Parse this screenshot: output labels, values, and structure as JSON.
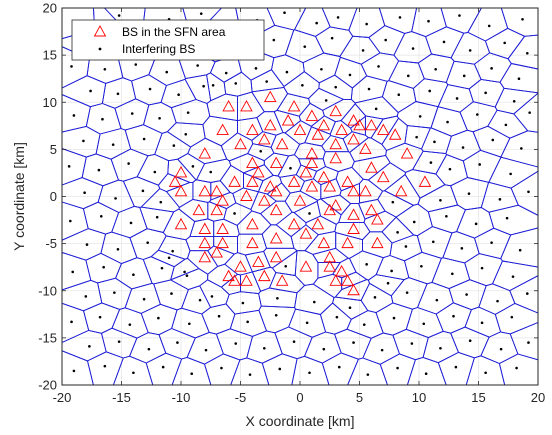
{
  "chart_data": {
    "type": "scatter",
    "xlabel": "X coordinate [km]",
    "ylabel": "Y coordinate [km]",
    "xlim": [
      -20,
      20
    ],
    "ylim": [
      -20,
      20
    ],
    "xticks": [
      -20,
      -15,
      -10,
      -5,
      0,
      5,
      10,
      15,
      20
    ],
    "yticks": [
      -20,
      -15,
      -10,
      -5,
      0,
      5,
      10,
      15,
      20
    ],
    "grid": true,
    "legend_position": "top-left",
    "overlay": "Voronoi cell boundaries of all base stations",
    "series": [
      {
        "name": "BS in the SFN area",
        "marker": "triangle",
        "color": "#ff0000",
        "points": [
          [
            -6,
            9.5
          ],
          [
            -4.5,
            9.5
          ],
          [
            -2.5,
            10.5
          ],
          [
            -0.5,
            9.5
          ],
          [
            1,
            8.5
          ],
          [
            3,
            9
          ],
          [
            4.5,
            8
          ],
          [
            -6.5,
            7
          ],
          [
            -4,
            7
          ],
          [
            -2.5,
            7.5
          ],
          [
            -1,
            8
          ],
          [
            0,
            7
          ],
          [
            2,
            7.5
          ],
          [
            3.5,
            7
          ],
          [
            5,
            7.5
          ],
          [
            6,
            7.5
          ],
          [
            7,
            7
          ],
          [
            8,
            6.5
          ],
          [
            -8,
            4.5
          ],
          [
            -5,
            5.5
          ],
          [
            -3,
            6
          ],
          [
            -1.5,
            5.5
          ],
          [
            1.5,
            6.5
          ],
          [
            3,
            5.5
          ],
          [
            4.5,
            6
          ],
          [
            5.5,
            5
          ],
          [
            1,
            4.5
          ],
          [
            3,
            4
          ],
          [
            1,
            3.5
          ],
          [
            -4,
            3.5
          ],
          [
            -2,
            3.5
          ],
          [
            -3.5,
            2.5
          ],
          [
            0.5,
            2.5
          ],
          [
            2,
            2
          ],
          [
            4,
            1.5
          ],
          [
            6,
            3
          ],
          [
            7,
            2
          ],
          [
            9,
            4.5
          ],
          [
            10.5,
            1.5
          ],
          [
            -10.5,
            1.5
          ],
          [
            -10,
            2.5
          ],
          [
            -10,
            0.5
          ],
          [
            -8,
            0.5
          ],
          [
            -5.5,
            1.5
          ],
          [
            -4,
            1.5
          ],
          [
            -2.5,
            1
          ],
          [
            -2,
            0.5
          ],
          [
            -0.5,
            1.5
          ],
          [
            1,
            1
          ],
          [
            2.5,
            1
          ],
          [
            4.5,
            0.5
          ],
          [
            5.5,
            0.5
          ],
          [
            8.5,
            0.5
          ],
          [
            -7,
            0.5
          ],
          [
            -6.5,
            -0.5
          ],
          [
            -4.5,
            0
          ],
          [
            -3,
            -0.5
          ],
          [
            0,
            -0.5
          ],
          [
            3,
            -1
          ],
          [
            -8.5,
            -1.5
          ],
          [
            -7,
            -1.5
          ],
          [
            -2,
            -1.5
          ],
          [
            2.5,
            -1.5
          ],
          [
            4.5,
            -2
          ],
          [
            6,
            -1.5
          ],
          [
            6.5,
            -2.5
          ],
          [
            -10,
            -3
          ],
          [
            -8,
            -3.5
          ],
          [
            -6.5,
            -3.5
          ],
          [
            -4,
            -3
          ],
          [
            -0.5,
            -3
          ],
          [
            1.5,
            -3
          ],
          [
            4.5,
            -3.5
          ],
          [
            -8,
            -5
          ],
          [
            -6.5,
            -5
          ],
          [
            -4,
            -5
          ],
          [
            -2,
            -4.5
          ],
          [
            0.5,
            -4
          ],
          [
            2,
            -5
          ],
          [
            4,
            -5
          ],
          [
            6.5,
            -5
          ],
          [
            -8,
            -6.5
          ],
          [
            -7,
            -6
          ],
          [
            -2,
            -6.5
          ],
          [
            2.5,
            -6.5
          ],
          [
            -5,
            -7.5
          ],
          [
            -3.5,
            -7
          ],
          [
            0.5,
            -7.5
          ],
          [
            2.5,
            -7.5
          ],
          [
            3.5,
            -8
          ],
          [
            -5.5,
            -9
          ],
          [
            -4.5,
            -9
          ],
          [
            -3,
            -8.5
          ],
          [
            -1.5,
            -9
          ],
          [
            3,
            -9
          ],
          [
            4,
            -9
          ],
          [
            -6,
            -8.5
          ],
          [
            4.5,
            -10
          ]
        ]
      },
      {
        "name": "Interfering BS",
        "marker": "point",
        "color": "#000000",
        "points": [
          [
            -18.6,
            18.5
          ],
          [
            -16,
            18.6
          ],
          [
            -15.2,
            19.2
          ],
          [
            -11,
            18.8
          ],
          [
            -8.3,
            19.4
          ],
          [
            -6.7,
            18.2
          ],
          [
            -3.6,
            18.7
          ],
          [
            -1.3,
            19.5
          ],
          [
            1.4,
            18.4
          ],
          [
            3.2,
            19
          ],
          [
            5.6,
            18.3
          ],
          [
            8.4,
            19
          ],
          [
            10.8,
            18.6
          ],
          [
            13.4,
            19.2
          ],
          [
            15.9,
            18.1
          ],
          [
            18.7,
            18.8
          ],
          [
            -17.8,
            16.3
          ],
          [
            -14.7,
            16.5
          ],
          [
            -12.3,
            16.1
          ],
          [
            -9.8,
            16.9
          ],
          [
            -7.3,
            15.8
          ],
          [
            -5.1,
            16.4
          ],
          [
            -2.2,
            16.6
          ],
          [
            0.4,
            15.9
          ],
          [
            2.7,
            16.8
          ],
          [
            5.3,
            15.5
          ],
          [
            7.2,
            16.6
          ],
          [
            9.5,
            15.7
          ],
          [
            12.1,
            16.4
          ],
          [
            14.3,
            15.5
          ],
          [
            17.2,
            16.3
          ],
          [
            19.1,
            15.2
          ],
          [
            -19.2,
            13.8
          ],
          [
            -16.4,
            13.5
          ],
          [
            -13.8,
            14
          ],
          [
            -11.2,
            13.2
          ],
          [
            -8.6,
            13.9
          ],
          [
            -6.2,
            13.1
          ],
          [
            -3.7,
            13.6
          ],
          [
            -1.1,
            13.2
          ],
          [
            1.8,
            13.5
          ],
          [
            4.2,
            12.9
          ],
          [
            6.6,
            13.8
          ],
          [
            9.1,
            12.8
          ],
          [
            11.4,
            13.5
          ],
          [
            13.8,
            12.8
          ],
          [
            16.1,
            13.6
          ],
          [
            18.4,
            12.5
          ],
          [
            -17.6,
            11.2
          ],
          [
            -15.3,
            10.9
          ],
          [
            -12.6,
            11.4
          ],
          [
            -10.2,
            10.8
          ],
          [
            -8.1,
            11.7
          ],
          [
            8.3,
            10.8
          ],
          [
            10.9,
            11.2
          ],
          [
            13.2,
            10.4
          ],
          [
            15.6,
            11
          ],
          [
            18,
            10.1
          ],
          [
            -19,
            8.6
          ],
          [
            -16.6,
            8.2
          ],
          [
            -14.1,
            8.8
          ],
          [
            -11.8,
            8.3
          ],
          [
            -9.4,
            8.9
          ],
          [
            10.1,
            8.5
          ],
          [
            12.4,
            7.9
          ],
          [
            14.9,
            8.7
          ],
          [
            17.3,
            7.6
          ],
          [
            19.3,
            8.9
          ],
          [
            -18.2,
            5.9
          ],
          [
            -15.7,
            5.5
          ],
          [
            -13.1,
            6.1
          ],
          [
            -10.6,
            5.4
          ],
          [
            11.3,
            5.8
          ],
          [
            13.7,
            5.2
          ],
          [
            16.2,
            6
          ],
          [
            18.6,
            5.1
          ],
          [
            -19.4,
            3.2
          ],
          [
            -16.9,
            2.8
          ],
          [
            -14.4,
            3.5
          ],
          [
            -12.2,
            2.6
          ],
          [
            12.6,
            2.9
          ],
          [
            15.1,
            3.4
          ],
          [
            17.7,
            2.4
          ],
          [
            -18.1,
            0.4
          ],
          [
            -15.5,
            -0.2
          ],
          [
            -13.2,
            0.6
          ],
          [
            11.8,
            -0.4
          ],
          [
            14.2,
            0.3
          ],
          [
            16.8,
            -0.3
          ],
          [
            19.2,
            0.5
          ],
          [
            -19.3,
            -2.6
          ],
          [
            -16.7,
            -2.1
          ],
          [
            -14.2,
            -2.8
          ],
          [
            -12,
            -2.2
          ],
          [
            9.6,
            -2.7
          ],
          [
            12.3,
            -2.1
          ],
          [
            14.8,
            -2.9
          ],
          [
            17.4,
            -2.3
          ],
          [
            -17.9,
            -5.1
          ],
          [
            -15.3,
            -5.6
          ],
          [
            -12.8,
            -4.9
          ],
          [
            -10.7,
            -5.8
          ],
          [
            8.9,
            -5.3
          ],
          [
            11.2,
            -4.8
          ],
          [
            13.6,
            -5.5
          ],
          [
            16.1,
            -4.9
          ],
          [
            18.5,
            -5.7
          ],
          [
            -19.1,
            -8
          ],
          [
            -16.5,
            -7.5
          ],
          [
            -14,
            -8.3
          ],
          [
            -11.6,
            -7.6
          ],
          [
            -9.5,
            -8.4
          ],
          [
            7.7,
            -7.9
          ],
          [
            10.2,
            -7.4
          ],
          [
            12.8,
            -8.2
          ],
          [
            15.3,
            -7.6
          ],
          [
            17.9,
            -8.5
          ],
          [
            -18,
            -10.6
          ],
          [
            -15.6,
            -10.2
          ],
          [
            -13.1,
            -10.9
          ],
          [
            -10.8,
            -10.3
          ],
          [
            -8.4,
            -11
          ],
          [
            6.3,
            -10.7
          ],
          [
            9,
            -10.2
          ],
          [
            11.5,
            -11
          ],
          [
            14,
            -10.4
          ],
          [
            16.6,
            -11.1
          ],
          [
            19.1,
            -10.3
          ],
          [
            -19.2,
            -13.3
          ],
          [
            -16.8,
            -12.8
          ],
          [
            -14.3,
            -13.6
          ],
          [
            -11.9,
            -12.9
          ],
          [
            -9.3,
            -13.5
          ],
          [
            -6.8,
            -12.7
          ],
          [
            -4.4,
            -13.3
          ],
          [
            -2,
            -12.6
          ],
          [
            0.6,
            -13.4
          ],
          [
            3.1,
            -12.8
          ],
          [
            5.4,
            -13.6
          ],
          [
            7.9,
            -12.9
          ],
          [
            10.4,
            -13.5
          ],
          [
            12.9,
            -12.7
          ],
          [
            15.3,
            -13.4
          ],
          [
            17.8,
            -12.8
          ],
          [
            -17.7,
            -15.9
          ],
          [
            -15.2,
            -15.4
          ],
          [
            -12.7,
            -16.2
          ],
          [
            -10.3,
            -15.5
          ],
          [
            -7.9,
            -16.3
          ],
          [
            -5.4,
            -15.6
          ],
          [
            -3,
            -16.1
          ],
          [
            -0.5,
            -15.4
          ],
          [
            2,
            -16.2
          ],
          [
            4.5,
            -15.5
          ],
          [
            6.9,
            -16.3
          ],
          [
            9.4,
            -15.6
          ],
          [
            11.8,
            -16.1
          ],
          [
            14.3,
            -15.3
          ],
          [
            16.9,
            -16.2
          ],
          [
            19.2,
            -15.5
          ],
          [
            -19,
            -18.5
          ],
          [
            -16.4,
            -18
          ],
          [
            -14,
            -18.7
          ],
          [
            -11.5,
            -18.1
          ],
          [
            -9.1,
            -18.8
          ],
          [
            -6.6,
            -18.2
          ],
          [
            -4.2,
            -18.9
          ],
          [
            -1.7,
            -18.3
          ],
          [
            0.8,
            -18.7
          ],
          [
            3.3,
            -18.1
          ],
          [
            5.7,
            -18.9
          ],
          [
            8.2,
            -18.2
          ],
          [
            10.6,
            -18.8
          ],
          [
            13.1,
            -18.1
          ],
          [
            15.6,
            -18.7
          ],
          [
            18.2,
            -18.2
          ],
          [
            -7.3,
            11.8
          ],
          [
            -5.4,
            12
          ],
          [
            -2.8,
            12.2
          ],
          [
            0.2,
            11.8
          ],
          [
            3,
            11.6
          ],
          [
            5.8,
            11.4
          ],
          [
            -9.6,
            6.6
          ],
          [
            9.8,
            6.3
          ],
          [
            -9,
            3.2
          ],
          [
            11,
            3.6
          ],
          [
            -11.7,
            -0.6
          ],
          [
            -11,
            -6.5
          ],
          [
            8.2,
            -3.8
          ],
          [
            -9.7,
            -8
          ],
          [
            7.4,
            -9.2
          ],
          [
            -7.4,
            -10.6
          ],
          [
            -4.8,
            -11.3
          ],
          [
            -1.9,
            -10.8
          ],
          [
            1.2,
            -11.2
          ],
          [
            4.2,
            -11.8
          ],
          [
            -0.8,
            3
          ],
          [
            6.4,
            9.3
          ],
          [
            -7.5,
            2.6
          ],
          [
            7.8,
            -0.6
          ],
          [
            -5.5,
            -1.8
          ],
          [
            0.8,
            -1.8
          ],
          [
            -1.2,
            -7.4
          ],
          [
            5.6,
            -7.2
          ],
          [
            -3.3,
            4.8
          ],
          [
            2.2,
            10.2
          ]
        ]
      }
    ]
  }
}
